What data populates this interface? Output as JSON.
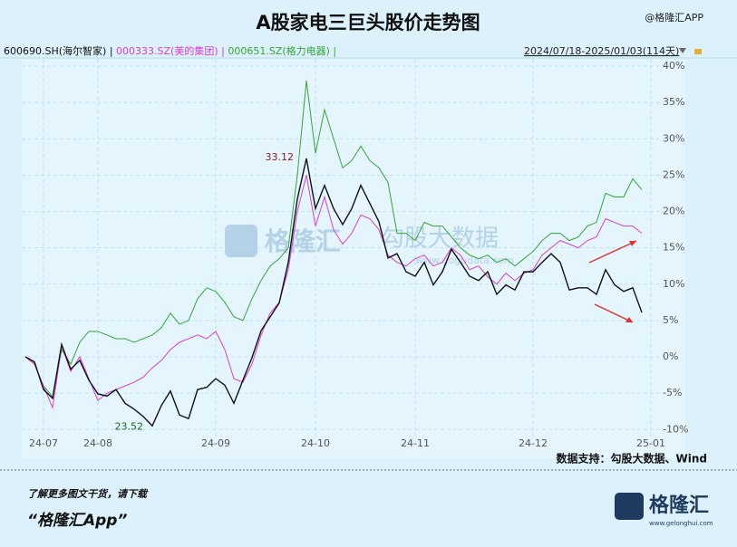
{
  "chart_data": {
    "type": "line",
    "title": "A股家电三巨头股价走势图",
    "brand": "@格隆汇APP",
    "date_range": "2024/07/18-2025/01/03(114天)",
    "source": "数据支持：勾股大数据、Wind",
    "watermark": [
      "格隆汇",
      "勾股大数据",
      "www.gogudata.com"
    ],
    "annotations": [
      "33.12",
      "23.52"
    ],
    "footer": {
      "note": "了解更多图文干货，请下载",
      "app": "“格隆汇App”",
      "logo": "格隆汇",
      "url": "www.gelonghui.com"
    },
    "categories": [
      null,
      null,
      "24-07",
      null,
      null,
      null,
      null,
      null,
      "24-08",
      null,
      null,
      null,
      null,
      null,
      null,
      null,
      null,
      null,
      null,
      null,
      null,
      "24-09",
      null,
      null,
      null,
      null,
      null,
      null,
      null,
      null,
      null,
      null,
      "24-10",
      null,
      null,
      null,
      null,
      null,
      null,
      null,
      null,
      null,
      null,
      "24-11",
      null,
      null,
      null,
      null,
      null,
      null,
      null,
      null,
      null,
      null,
      null,
      null,
      "24-12",
      null,
      null,
      null,
      null,
      null,
      null,
      null,
      null,
      null,
      null,
      null,
      null,
      "25-01"
    ],
    "series": [
      {
        "name": "600690.SH(海尔智家)",
        "color": "#111111",
        "values": [
          0,
          -0.7,
          -4.5,
          -5.7,
          1.7,
          -1.7,
          -0.5,
          -3.2,
          -5.1,
          -5.4,
          -4.5,
          -6.4,
          -7.2,
          -8.2,
          -9.5,
          -6.7,
          -4.7,
          -8,
          -8.5,
          -4.5,
          -4.2,
          -3,
          -3.9,
          -6.4,
          -3.2,
          -0.1,
          3.6,
          5.5,
          7.4,
          13,
          21.7,
          27.3,
          20.4,
          23.6,
          20.4,
          18.2,
          20.4,
          23.6,
          21.1,
          18.6,
          13.6,
          14.2,
          11.7,
          11.1,
          13,
          9.9,
          11.7,
          14.8,
          13,
          11.1,
          10.5,
          11.7,
          8.6,
          9.9,
          9.2,
          11.7,
          11.7,
          13,
          14.2,
          13,
          9.2,
          9.5,
          9.5,
          8.6,
          12,
          9.9,
          9,
          9.5,
          6.1,
          null
        ]
      },
      {
        "name": "000333.SZ(美的集团)",
        "color": "#d23fd2",
        "values": [
          0,
          -1,
          -4,
          -7,
          1.5,
          -2,
          0,
          -3,
          -6,
          -5,
          -4.5,
          -4,
          -3.5,
          -2.8,
          -1.5,
          -0.5,
          1,
          2,
          2.5,
          3,
          2.5,
          3.5,
          1,
          -3,
          -3.5,
          -1,
          3,
          6,
          7.5,
          12,
          20,
          25,
          18,
          22,
          17.5,
          15.5,
          17,
          19.5,
          19,
          17.5,
          14,
          13,
          12.5,
          13.5,
          14,
          12.5,
          13,
          15,
          14,
          12,
          12.5,
          11,
          10,
          11.5,
          10.5,
          11.5,
          12,
          14,
          15,
          16,
          15.5,
          15,
          16,
          16.5,
          19,
          18.5,
          18,
          18,
          17,
          null
        ]
      },
      {
        "name": "000651.SZ(格力电器)",
        "color": "#33a633",
        "values": [
          0,
          -1,
          -4,
          -5.5,
          1,
          -1,
          2,
          3.5,
          3.5,
          3,
          2.5,
          2.5,
          2,
          2.5,
          3,
          4,
          6,
          4.5,
          5,
          8,
          9.5,
          9,
          7.5,
          5.5,
          5,
          8,
          10.5,
          12.5,
          13.5,
          15,
          25,
          38,
          28,
          34,
          30,
          26,
          27,
          29,
          27,
          26,
          24,
          17,
          17,
          16,
          18.5,
          18,
          18,
          16.5,
          15,
          14,
          13.5,
          14,
          13,
          13.5,
          12.5,
          13.5,
          14.5,
          16,
          17,
          17,
          16,
          16.5,
          18,
          18.5,
          22.5,
          22,
          22,
          24.5,
          23,
          null
        ]
      }
    ],
    "ylim": [
      -11,
      41
    ],
    "yticks": [
      {
        "value": -10,
        "label": "-10%"
      },
      {
        "value": -5,
        "label": "-5%"
      },
      {
        "value": 0,
        "label": "0%"
      },
      {
        "value": 5,
        "label": "5%"
      },
      {
        "value": 10,
        "label": "10%"
      },
      {
        "value": 15,
        "label": "15%"
      },
      {
        "value": 20,
        "label": "20%"
      },
      {
        "value": 25,
        "label": "25%"
      },
      {
        "value": 30,
        "label": "30%"
      },
      {
        "value": 35,
        "label": "35%"
      },
      {
        "value": 40,
        "label": "40%"
      }
    ],
    "grid": true
  }
}
